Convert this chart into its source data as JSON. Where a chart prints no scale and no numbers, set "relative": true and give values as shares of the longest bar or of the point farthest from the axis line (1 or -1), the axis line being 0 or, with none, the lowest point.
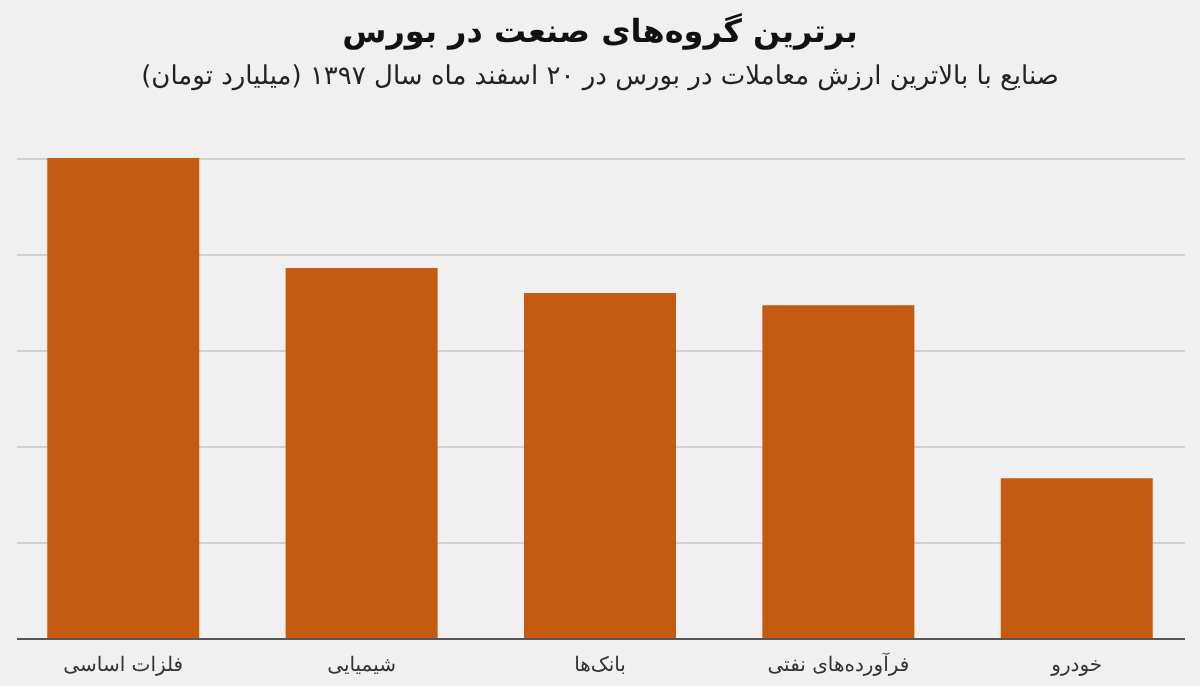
{
  "chart_data": {
    "type": "bar",
    "title": "برترین گروه‌های صنعت در بورس",
    "subtitle": "صنایع با بالاترین ارزش معاملات در بورس در ۲۰ اسفند ماه سال ۱۳۹۷ (میلیارد تومان)",
    "categories": [
      "فلزات اساسی",
      "شیمیایی",
      "بانک‌ها",
      "فرآورده‌های نفتی",
      "خودرو"
    ],
    "values": [
      1,
      0.771,
      0.719,
      0.693,
      0.333
    ],
    "color": "#c55a11",
    "relative": true,
    "grid": true
  }
}
